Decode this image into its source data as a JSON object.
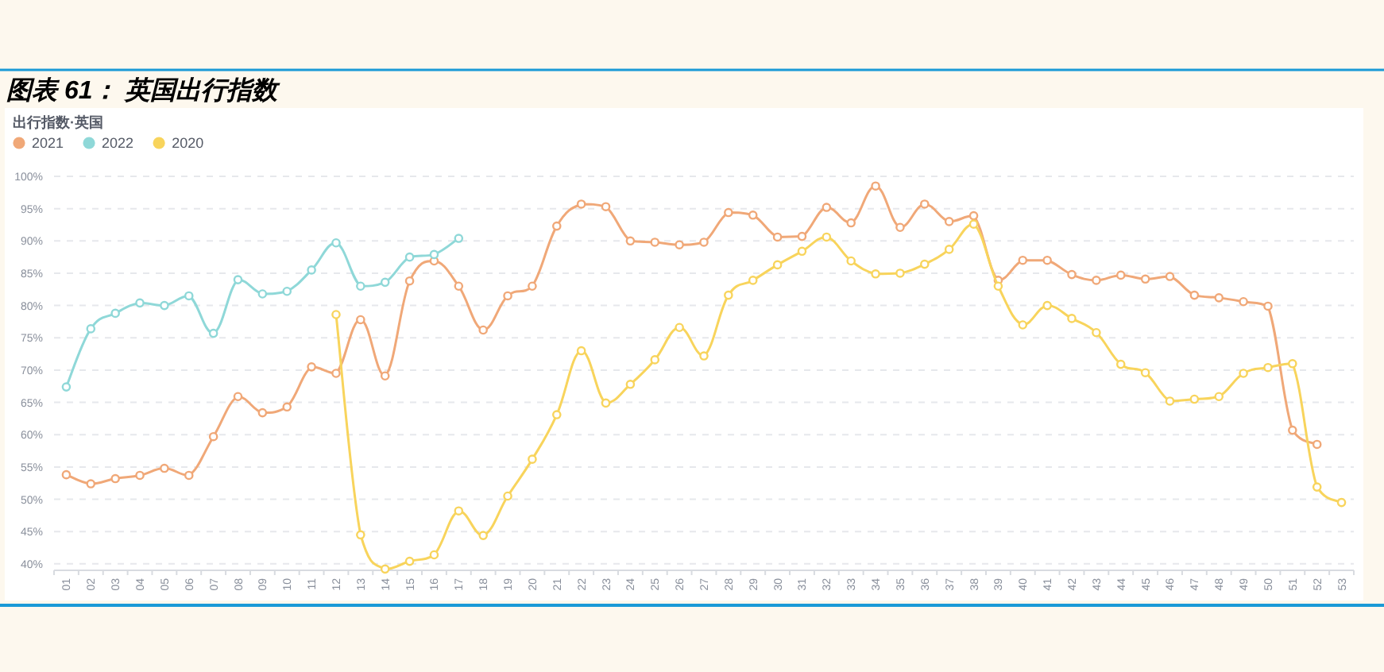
{
  "chart_data": {
    "type": "line",
    "title": "图表 61： 英国出行指数",
    "subtitle": "出行指数·英国",
    "categories": [
      "01",
      "02",
      "03",
      "04",
      "05",
      "06",
      "07",
      "08",
      "09",
      "10",
      "11",
      "12",
      "13",
      "14",
      "15",
      "16",
      "17",
      "18",
      "19",
      "20",
      "21",
      "22",
      "23",
      "24",
      "25",
      "26",
      "27",
      "28",
      "29",
      "30",
      "31",
      "32",
      "33",
      "34",
      "35",
      "36",
      "37",
      "38",
      "39",
      "40",
      "41",
      "42",
      "43",
      "44",
      "45",
      "46",
      "47",
      "48",
      "49",
      "50",
      "51",
      "52",
      "53"
    ],
    "series": [
      {
        "name": "2021",
        "color": "#f0a878",
        "values": [
          53.8,
          52.4,
          53.2,
          53.7,
          54.8,
          53.7,
          59.7,
          65.9,
          63.4,
          64.3,
          70.5,
          69.5,
          77.8,
          69.1,
          83.8,
          86.9,
          83,
          76.2,
          81.5,
          83,
          92.3,
          95.7,
          95.3,
          90,
          89.8,
          89.4,
          89.8,
          94.4,
          94,
          90.6,
          90.7,
          95.2,
          92.8,
          98.5,
          92.1,
          95.7,
          93,
          93.9,
          83.9,
          87,
          87,
          84.8,
          83.9,
          84.7,
          84.1,
          84.5,
          81.6,
          81.2,
          80.6,
          79.9,
          60.7,
          58.5,
          null
        ]
      },
      {
        "name": "2022",
        "color": "#8fd8d8",
        "values": [
          67.4,
          76.4,
          78.8,
          80.4,
          80,
          81.5,
          75.7,
          84,
          81.8,
          82.2,
          85.5,
          89.7,
          83,
          83.6,
          87.5,
          87.9,
          90.4,
          null,
          null,
          null,
          null,
          null,
          null,
          null,
          null,
          null,
          null,
          null,
          null,
          null,
          null,
          null,
          null,
          null,
          null,
          null,
          null,
          null,
          null,
          null,
          null,
          null,
          null,
          null,
          null,
          null,
          null,
          null,
          null,
          null,
          null,
          null,
          null
        ]
      },
      {
        "name": "2020",
        "color": "#f8d45c",
        "values": [
          null,
          null,
          null,
          null,
          null,
          null,
          null,
          null,
          null,
          null,
          null,
          78.6,
          44.5,
          39.2,
          40.4,
          41.4,
          48.2,
          44.4,
          50.5,
          56.2,
          63.1,
          73,
          64.9,
          67.8,
          71.6,
          76.6,
          72.2,
          81.6,
          83.9,
          86.3,
          88.4,
          90.6,
          86.9,
          84.9,
          85,
          86.4,
          88.7,
          92.6,
          83,
          77,
          80,
          78,
          75.8,
          70.9,
          69.6,
          65.2,
          65.5,
          65.9,
          69.5,
          70.4,
          71,
          51.9,
          49.5
        ]
      }
    ],
    "ylim": [
      39,
      100
    ],
    "yticks": [
      {
        "value": 40,
        "label": "40%"
      },
      {
        "value": 45,
        "label": "45%"
      },
      {
        "value": 50,
        "label": "50%"
      },
      {
        "value": 55,
        "label": "55%"
      },
      {
        "value": 60,
        "label": "60%"
      },
      {
        "value": 65,
        "label": "65%"
      },
      {
        "value": 70,
        "label": "70%"
      },
      {
        "value": 75,
        "label": "75%"
      },
      {
        "value": 80,
        "label": "80%"
      },
      {
        "value": 85,
        "label": "85%"
      },
      {
        "value": 90,
        "label": "90%"
      },
      {
        "value": 95,
        "label": "95%"
      },
      {
        "value": 100,
        "label": "100%"
      }
    ],
    "grid": "y",
    "legend": "top left",
    "marker": "circle",
    "line_style": "solid"
  }
}
